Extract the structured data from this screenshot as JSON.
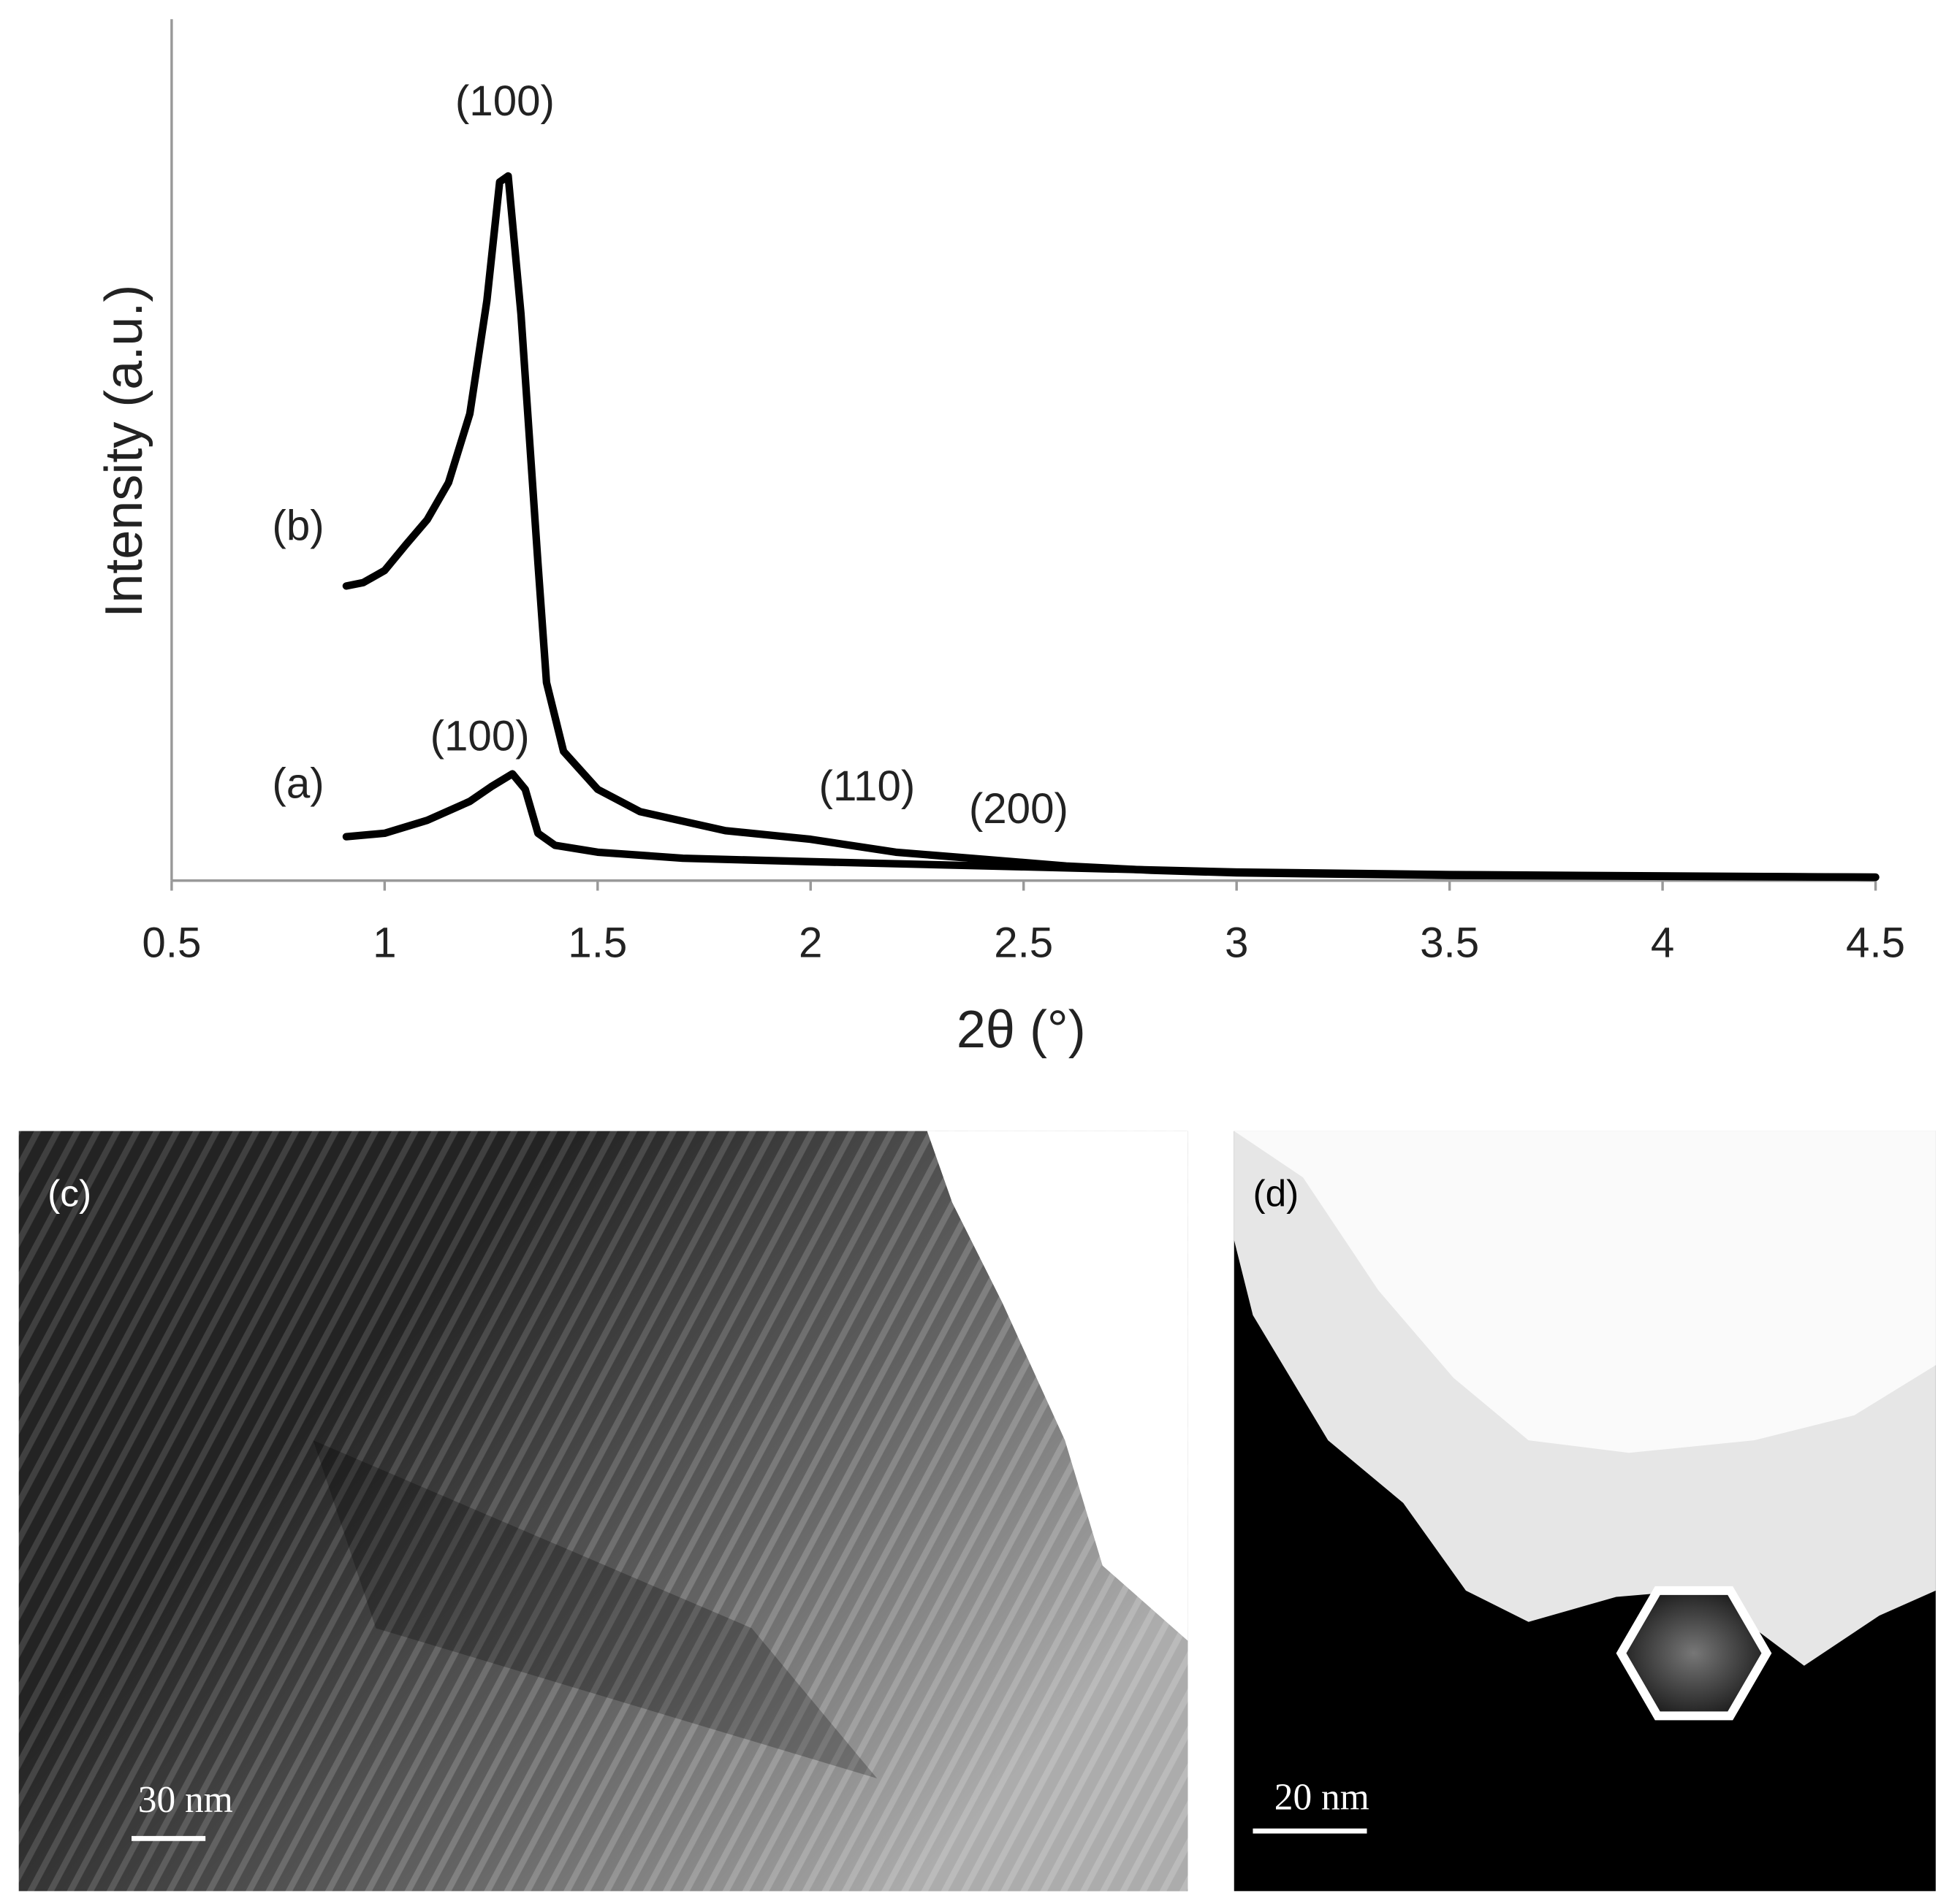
{
  "chart_data": {
    "type": "line",
    "xlabel": "2θ (°)",
    "ylabel": "Intensity (a.u.)",
    "xlim": [
      0.5,
      4.5
    ],
    "xticks": [
      0.5,
      1,
      1.5,
      2,
      2.5,
      3,
      3.5,
      4,
      4.5
    ],
    "ylim": [
      0,
      100
    ],
    "grid": false,
    "series": [
      {
        "name": "(a)",
        "color": "#000000",
        "x": [
          0.91,
          1.0,
          1.1,
          1.2,
          1.25,
          1.3,
          1.33,
          1.36,
          1.4,
          1.5,
          1.7,
          2.0,
          2.5,
          3.0,
          3.5,
          4.5
        ],
        "values": [
          5.1,
          5.5,
          7.0,
          9.2,
          10.9,
          12.4,
          10.6,
          5.5,
          4.1,
          3.3,
          2.6,
          2.2,
          1.6,
          1.0,
          0.7,
          0.4
        ]
      },
      {
        "name": "(b)",
        "color": "#000000",
        "x": [
          0.91,
          0.95,
          1.0,
          1.05,
          1.1,
          1.15,
          1.2,
          1.24,
          1.27,
          1.29,
          1.32,
          1.36,
          1.38,
          1.42,
          1.5,
          1.6,
          1.8,
          2.0,
          2.2,
          2.4,
          2.6,
          2.8,
          3.0,
          3.5,
          4.5
        ],
        "values": [
          34.2,
          34.6,
          36.0,
          39.0,
          41.9,
          46.2,
          54.2,
          67.3,
          81.1,
          81.8,
          65.8,
          36.8,
          23.0,
          15.0,
          10.6,
          8.0,
          5.8,
          4.8,
          3.3,
          2.5,
          1.7,
          1.2,
          0.9,
          0.6,
          0.4
        ]
      }
    ],
    "annotations": [
      "(100)",
      "(100)",
      "(110)",
      "(200)"
    ]
  },
  "panels": [
    {
      "label": "(c)",
      "scale_bar": "30 nm"
    },
    {
      "label": "(d)",
      "scale_bar": "20 nm"
    }
  ]
}
